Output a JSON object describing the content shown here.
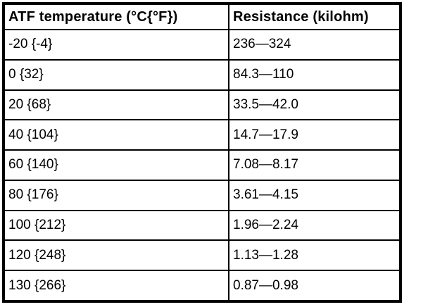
{
  "table": {
    "columns": [
      "ATF temperature (°C{°F})",
      "Resistance (kilohm)"
    ],
    "rows": [
      {
        "temperature": "-20 {-4}",
        "resistance": "236—324"
      },
      {
        "temperature": "0 {32}",
        "resistance": "84.3—110"
      },
      {
        "temperature": "20 {68}",
        "resistance": "33.5—42.0"
      },
      {
        "temperature": "40 {104}",
        "resistance": "14.7—17.9"
      },
      {
        "temperature": "60 {140}",
        "resistance": "7.08—8.17"
      },
      {
        "temperature": "80 {176}",
        "resistance": "3.61—4.15"
      },
      {
        "temperature": "100 {212}",
        "resistance": "1.96—2.24"
      },
      {
        "temperature": "120 {248}",
        "resistance": "1.13—1.28"
      },
      {
        "temperature": "130 {266}",
        "resistance": "0.87—0.98"
      }
    ],
    "colors": {
      "border": "#000000",
      "background": "#ffffff",
      "text": "#000000"
    }
  }
}
